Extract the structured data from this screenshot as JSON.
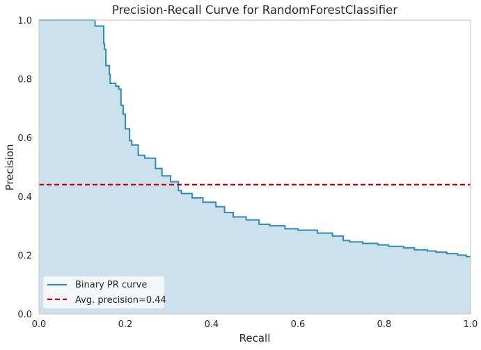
{
  "chart_data": {
    "type": "line",
    "title": "Precision-Recall Curve for RandomForestClassifier",
    "xlabel": "Recall",
    "ylabel": "Precision",
    "xlim": [
      0.0,
      1.0
    ],
    "ylim": [
      0.0,
      1.0
    ],
    "x_ticks": [
      "0.0",
      "0.2",
      "0.4",
      "0.6",
      "0.8",
      "1.0"
    ],
    "y_ticks": [
      "0.0",
      "0.2",
      "0.4",
      "0.6",
      "0.8",
      "1.0"
    ],
    "grid": false,
    "legend_position": "lower-left",
    "series": [
      {
        "name": "Binary PR curve",
        "style": "step",
        "filled": true,
        "color": "#2e8ab8",
        "fill_color": "#cbe2ec",
        "points": [
          [
            0.0,
            1.0
          ],
          [
            0.13,
            1.0
          ],
          [
            0.13,
            0.98
          ],
          [
            0.15,
            0.98
          ],
          [
            0.15,
            0.92
          ],
          [
            0.152,
            0.92
          ],
          [
            0.152,
            0.9
          ],
          [
            0.155,
            0.9
          ],
          [
            0.155,
            0.845
          ],
          [
            0.163,
            0.845
          ],
          [
            0.163,
            0.815
          ],
          [
            0.165,
            0.815
          ],
          [
            0.165,
            0.785
          ],
          [
            0.178,
            0.785
          ],
          [
            0.178,
            0.775
          ],
          [
            0.185,
            0.775
          ],
          [
            0.185,
            0.765
          ],
          [
            0.19,
            0.765
          ],
          [
            0.19,
            0.71
          ],
          [
            0.195,
            0.71
          ],
          [
            0.195,
            0.68
          ],
          [
            0.2,
            0.68
          ],
          [
            0.2,
            0.63
          ],
          [
            0.21,
            0.63
          ],
          [
            0.21,
            0.59
          ],
          [
            0.215,
            0.59
          ],
          [
            0.215,
            0.575
          ],
          [
            0.23,
            0.575
          ],
          [
            0.23,
            0.54
          ],
          [
            0.245,
            0.54
          ],
          [
            0.245,
            0.53
          ],
          [
            0.27,
            0.53
          ],
          [
            0.27,
            0.495
          ],
          [
            0.285,
            0.495
          ],
          [
            0.285,
            0.47
          ],
          [
            0.305,
            0.47
          ],
          [
            0.305,
            0.45
          ],
          [
            0.323,
            0.45
          ],
          [
            0.323,
            0.42
          ],
          [
            0.33,
            0.42
          ],
          [
            0.33,
            0.41
          ],
          [
            0.355,
            0.41
          ],
          [
            0.355,
            0.395
          ],
          [
            0.38,
            0.395
          ],
          [
            0.38,
            0.38
          ],
          [
            0.41,
            0.38
          ],
          [
            0.41,
            0.365
          ],
          [
            0.43,
            0.365
          ],
          [
            0.43,
            0.345
          ],
          [
            0.45,
            0.345
          ],
          [
            0.45,
            0.33
          ],
          [
            0.48,
            0.33
          ],
          [
            0.48,
            0.32
          ],
          [
            0.51,
            0.32
          ],
          [
            0.51,
            0.305
          ],
          [
            0.535,
            0.305
          ],
          [
            0.535,
            0.3
          ],
          [
            0.57,
            0.3
          ],
          [
            0.57,
            0.29
          ],
          [
            0.6,
            0.29
          ],
          [
            0.6,
            0.285
          ],
          [
            0.645,
            0.285
          ],
          [
            0.645,
            0.275
          ],
          [
            0.68,
            0.275
          ],
          [
            0.68,
            0.265
          ],
          [
            0.705,
            0.265
          ],
          [
            0.705,
            0.25
          ],
          [
            0.72,
            0.25
          ],
          [
            0.72,
            0.245
          ],
          [
            0.75,
            0.245
          ],
          [
            0.75,
            0.24
          ],
          [
            0.785,
            0.24
          ],
          [
            0.785,
            0.235
          ],
          [
            0.81,
            0.235
          ],
          [
            0.81,
            0.23
          ],
          [
            0.845,
            0.23
          ],
          [
            0.845,
            0.225
          ],
          [
            0.87,
            0.225
          ],
          [
            0.87,
            0.218
          ],
          [
            0.9,
            0.218
          ],
          [
            0.9,
            0.214
          ],
          [
            0.92,
            0.214
          ],
          [
            0.92,
            0.21
          ],
          [
            0.945,
            0.21
          ],
          [
            0.945,
            0.205
          ],
          [
            0.97,
            0.205
          ],
          [
            0.97,
            0.2
          ],
          [
            0.99,
            0.2
          ],
          [
            0.99,
            0.195
          ],
          [
            1.0,
            0.195
          ]
        ]
      },
      {
        "name": "Avg. precision=0.44",
        "style": "dashed",
        "color": "#cc0000",
        "y": 0.44
      }
    ]
  }
}
